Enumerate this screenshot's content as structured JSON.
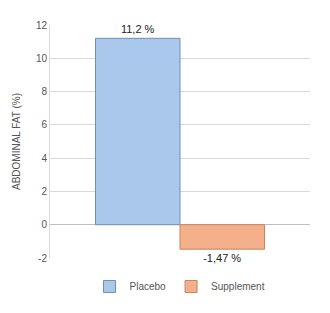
{
  "chart_data": {
    "type": "bar",
    "y_label": "ABDOMINAL FAT (%)",
    "categories": [
      null
    ],
    "series": [
      {
        "name": "Placebo",
        "color": "#a9c8ec",
        "values": [
          11.2
        ],
        "value_labels": [
          "11,2 %"
        ]
      },
      {
        "name": "Supplement",
        "color": "#f4b08a",
        "values": [
          -1.47
        ],
        "value_labels": [
          "-1,47 %"
        ]
      }
    ],
    "ylim": [
      -2,
      12
    ],
    "yticks": [
      -2,
      0,
      2,
      4,
      6,
      8,
      10,
      12
    ],
    "grid": true,
    "legend": "bottom",
    "data_labels": true,
    "tick_labels": "y"
  }
}
